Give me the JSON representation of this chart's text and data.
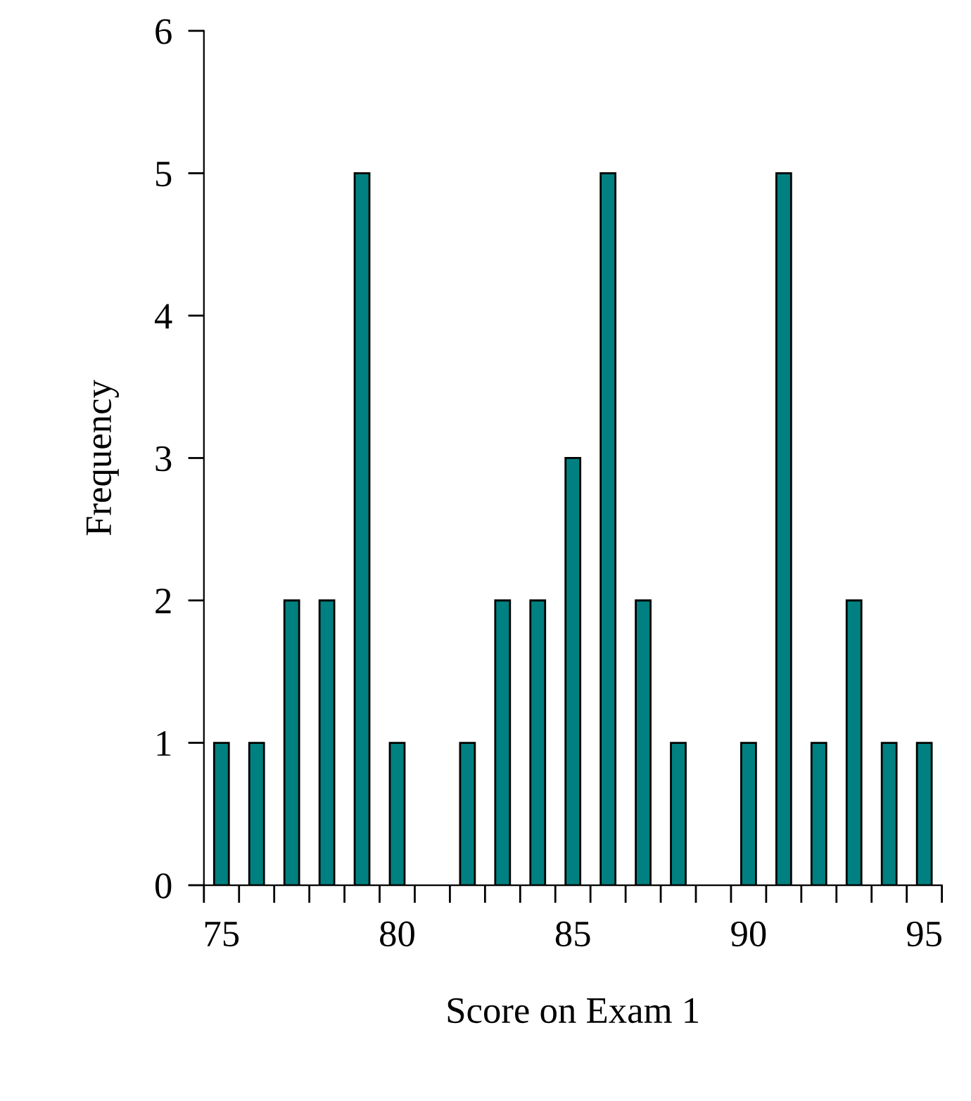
{
  "chart_data": {
    "type": "histogram",
    "xlabel": "Score on Exam 1",
    "ylabel": "Frequency",
    "bins": [
      74.5,
      75.5,
      76.5,
      77.5,
      78.5,
      79.5,
      80.5,
      81.5,
      82.5,
      83.5,
      84.5,
      85.5,
      86.5,
      87.5,
      88.5,
      89.5,
      90.5,
      91.5,
      92.5,
      93.5,
      94.5,
      95.5
    ],
    "values": [
      1,
      1,
      2,
      2,
      5,
      1,
      0,
      1,
      2,
      2,
      3,
      5,
      2,
      1,
      0,
      1,
      5,
      1,
      2,
      1,
      1
    ],
    "color": "#008080",
    "xlim": [
      74.5,
      95.5
    ],
    "xticks": [
      {
        "value": 74.5,
        "label": null
      },
      {
        "value": 75.5,
        "label": null
      },
      {
        "value": 76.5,
        "label": null
      },
      {
        "value": 77.5,
        "label": null
      },
      {
        "value": 78.5,
        "label": null
      },
      {
        "value": 79.5,
        "label": null
      },
      {
        "value": 80.5,
        "label": null
      },
      {
        "value": 81.5,
        "label": null
      },
      {
        "value": 82.5,
        "label": null
      },
      {
        "value": 83.5,
        "label": null
      },
      {
        "value": 84.5,
        "label": null
      },
      {
        "value": 85.5,
        "label": null
      },
      {
        "value": 86.5,
        "label": null
      },
      {
        "value": 87.5,
        "label": null
      },
      {
        "value": 88.5,
        "label": null
      },
      {
        "value": 89.5,
        "label": null
      },
      {
        "value": 90.5,
        "label": null
      },
      {
        "value": 91.5,
        "label": null
      },
      {
        "value": 92.5,
        "label": null
      },
      {
        "value": 93.5,
        "label": null
      },
      {
        "value": 94.5,
        "label": null
      },
      {
        "value": 95.5,
        "label": null
      },
      {
        "value": 75,
        "label": "75"
      },
      {
        "value": 80,
        "label": "80"
      },
      {
        "value": 85,
        "label": "85"
      },
      {
        "value": 90,
        "label": "90"
      },
      {
        "value": 95,
        "label": "95"
      }
    ],
    "ylim": [
      0,
      6
    ],
    "yticks": [
      0,
      1,
      2,
      3,
      4,
      5,
      6
    ],
    "grid": false,
    "legend": false
  }
}
